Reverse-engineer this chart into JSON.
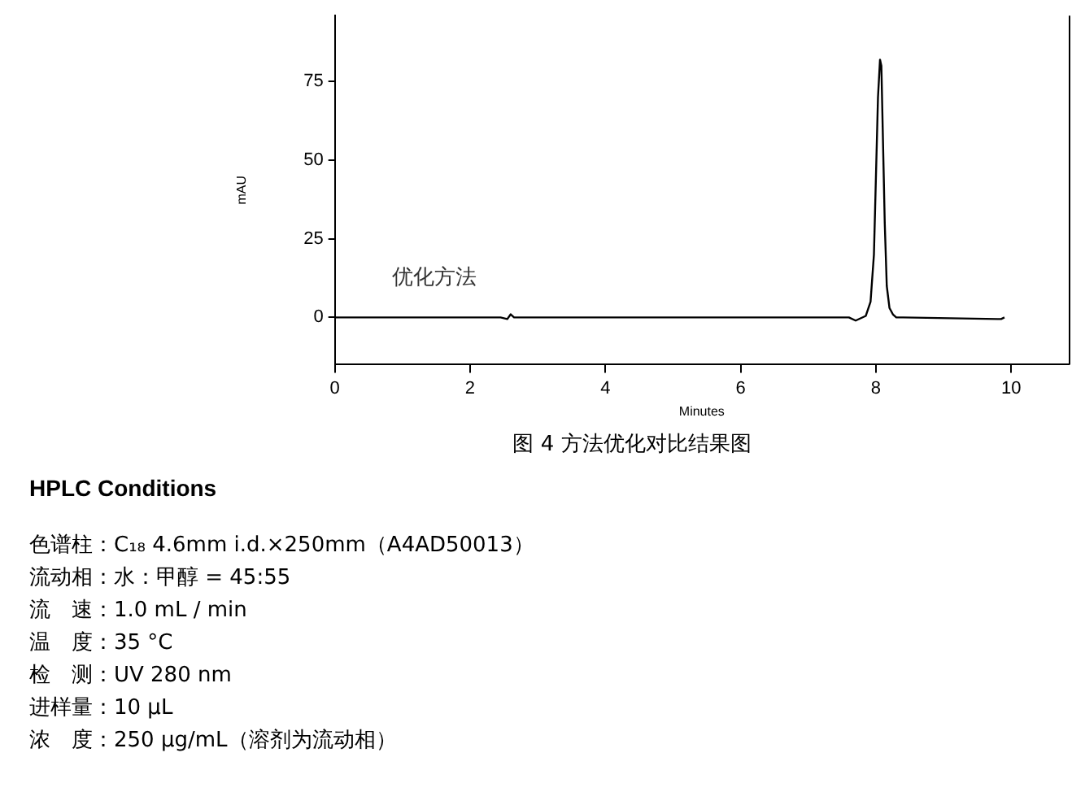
{
  "chart_data": {
    "type": "line",
    "xlabel": "Minutes",
    "ylabel": "mAU",
    "xlim": [
      0,
      10.85
    ],
    "xticks": [
      0,
      2,
      4,
      6,
      8,
      10
    ],
    "ylim": [
      -15,
      96
    ],
    "yticks": [
      0,
      25,
      50,
      75
    ],
    "grid": false,
    "legend": false,
    "marker": "none",
    "line_style": "solid",
    "series": [
      {
        "name": "优化方法",
        "color": "#000000",
        "x": [
          0,
          2.45,
          2.55,
          2.6,
          2.65,
          7.6,
          7.7,
          7.85,
          7.92,
          7.97,
          8.0,
          8.03,
          8.06,
          8.08,
          8.1,
          8.13,
          8.16,
          8.2,
          8.25,
          8.3,
          8.4,
          9.8,
          9.85,
          9.9
        ],
        "values": [
          0,
          0,
          -0.5,
          1,
          0,
          0,
          -1,
          0.5,
          5,
          20,
          45,
          70,
          82,
          80,
          60,
          30,
          10,
          3,
          1,
          0,
          0,
          -0.5,
          -0.5,
          0
        ]
      }
    ],
    "annotations": [
      "图 4  方法优化对比结果图",
      "HPLC Conditions",
      "色谱柱：C₁₈ 4.6mm i.d.×250mm（A4AD50013）",
      "流动相：水：甲醇 = 45:55",
      "流　速：1.0 mL / min",
      "温　度：35 °C",
      "检　测：UV 280 nm",
      "进样量：10 µL",
      "浓　度：250 µg/mL（溶剂为流动相）"
    ]
  }
}
